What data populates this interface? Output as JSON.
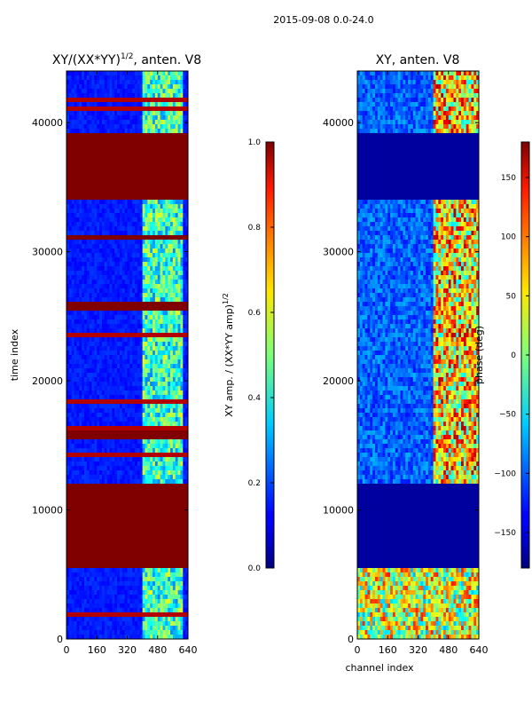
{
  "chart_data": {
    "suptitle": "2015-09-08 0.0-24.0",
    "panels": [
      {
        "type": "heatmap",
        "title_main": "XY/(XX*YY)",
        "title_sup": "1/2",
        "title_rest": ", anten. V8",
        "xlabel": "",
        "ylabel": "time index",
        "xlim": [
          0,
          640
        ],
        "ylim": [
          0,
          44000
        ],
        "xticks": [
          0,
          160,
          320,
          480,
          640
        ],
        "yticks": [
          0,
          10000,
          20000,
          30000,
          40000
        ],
        "masked_bands": [
          [
            5400,
            12200
          ],
          [
            15600,
            16100
          ],
          [
            25600,
            26000
          ],
          [
            30800,
            31200
          ],
          [
            34200,
            39300
          ]
        ],
        "colorbar": {
          "label_main": "XY amp. / (XX*YY amp)",
          "label_sup": "1/2",
          "range": [
            0.0,
            1.0
          ],
          "ticks": [
            "0.0",
            "0.2",
            "0.4",
            "0.6",
            "0.8",
            "1.0"
          ]
        }
      },
      {
        "type": "heatmap",
        "title": "XY, anten. V8",
        "xlabel": "channel index",
        "ylabel": "",
        "xlim": [
          0,
          640
        ],
        "ylim": [
          0,
          44000
        ],
        "xticks": [
          0,
          160,
          320,
          480,
          640
        ],
        "yticks": [
          0,
          10000,
          20000,
          30000,
          40000
        ],
        "masked_bands": [
          [
            5400,
            12200
          ],
          [
            34200,
            39300
          ]
        ],
        "colorbar": {
          "label": "phase (deg)",
          "range": [
            -180,
            180
          ],
          "ticks": [
            "−150",
            "−100",
            "−50",
            "0",
            "50",
            "100",
            "150"
          ]
        }
      }
    ]
  }
}
